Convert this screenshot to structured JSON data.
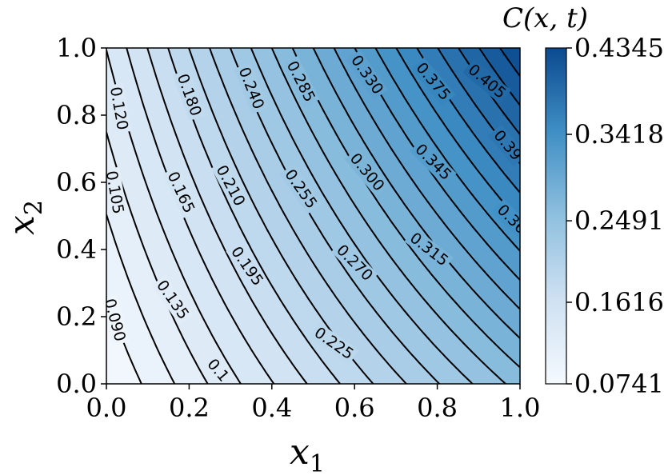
{
  "chart_data": {
    "type": "contour",
    "xlabel": "x",
    "xlabel_sub": "1",
    "ylabel": "x",
    "ylabel_sub": "2",
    "xlim": [
      0.0,
      1.0
    ],
    "ylim": [
      0.0,
      1.0
    ],
    "x_ticks": [
      "0.0",
      "0.2",
      "0.4",
      "0.6",
      "0.8",
      "1.0"
    ],
    "y_ticks": [
      "0.0",
      "0.2",
      "0.4",
      "0.6",
      "0.8",
      "1.0"
    ],
    "colormap": "Blues",
    "colorbar": {
      "title": "C(x, t)",
      "min": 0.0741,
      "max": 0.4345,
      "tick_labels": [
        "0.4345",
        "0.3418",
        "0.2491",
        "0.1616",
        "0.0741"
      ],
      "tick_values": [
        0.4345,
        0.3418,
        0.2491,
        0.1616,
        0.0741
      ]
    },
    "contour_levels": [
      0.09,
      0.105,
      0.12,
      0.135,
      0.15,
      0.165,
      0.18,
      0.195,
      0.21,
      0.225,
      0.24,
      0.255,
      0.27,
      0.285,
      0.3,
      0.315,
      0.33,
      0.345,
      0.36,
      0.375,
      0.39,
      0.405,
      0.42
    ],
    "contour_labels": [
      {
        "text": "0.090",
        "x": 0.02,
        "y": 0.19,
        "angle": 75
      },
      {
        "text": "0.105",
        "x": 0.02,
        "y": 0.57,
        "angle": 80
      },
      {
        "text": "0.120",
        "x": 0.03,
        "y": 0.82,
        "angle": 80
      },
      {
        "text": "0.135",
        "x": 0.16,
        "y": 0.25,
        "angle": 55
      },
      {
        "text": "0.1",
        "x": 0.27,
        "y": 0.04,
        "angle": 50
      },
      {
        "text": "0.165",
        "x": 0.18,
        "y": 0.57,
        "angle": 65
      },
      {
        "text": "0.180",
        "x": 0.2,
        "y": 0.86,
        "angle": 70
      },
      {
        "text": "0.195",
        "x": 0.34,
        "y": 0.35,
        "angle": 55
      },
      {
        "text": "0.210",
        "x": 0.3,
        "y": 0.59,
        "angle": 62
      },
      {
        "text": "0.240",
        "x": 0.35,
        "y": 0.88,
        "angle": 68
      },
      {
        "text": "0.225",
        "x": 0.55,
        "y": 0.12,
        "angle": 35
      },
      {
        "text": "0.255",
        "x": 0.47,
        "y": 0.58,
        "angle": 55
      },
      {
        "text": "0.285",
        "x": 0.47,
        "y": 0.9,
        "angle": 63
      },
      {
        "text": "0.270",
        "x": 0.6,
        "y": 0.36,
        "angle": 45
      },
      {
        "text": "0.300",
        "x": 0.63,
        "y": 0.63,
        "angle": 50
      },
      {
        "text": "0.330",
        "x": 0.63,
        "y": 0.92,
        "angle": 55
      },
      {
        "text": "0.315",
        "x": 0.78,
        "y": 0.4,
        "angle": 38
      },
      {
        "text": "0.345",
        "x": 0.79,
        "y": 0.66,
        "angle": 45
      },
      {
        "text": "0.375",
        "x": 0.79,
        "y": 0.9,
        "angle": 50
      },
      {
        "text": "0.39",
        "x": 0.97,
        "y": 0.71,
        "angle": 50
      },
      {
        "text": "0.36",
        "x": 0.98,
        "y": 0.49,
        "angle": 45
      },
      {
        "text": "0.405",
        "x": 0.92,
        "y": 0.9,
        "angle": 40
      }
    ]
  }
}
